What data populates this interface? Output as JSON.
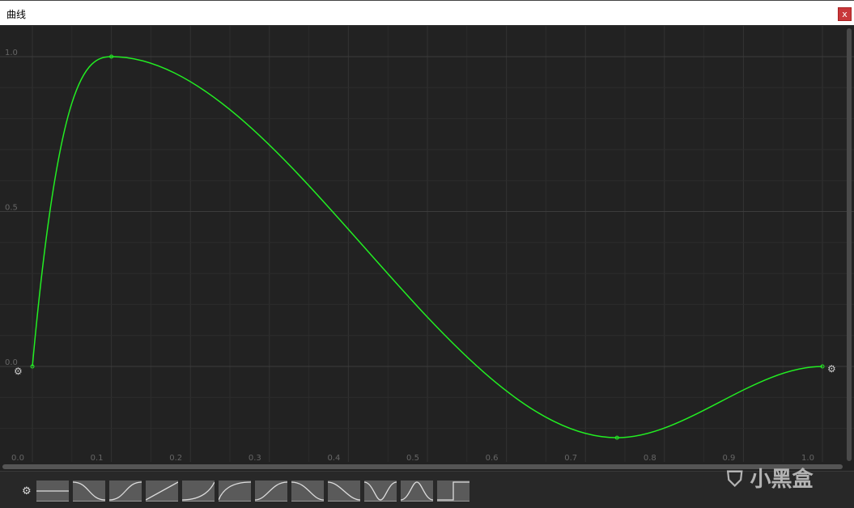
{
  "window": {
    "title": "曲线",
    "close_label": "x"
  },
  "chart_data": {
    "type": "line",
    "x_ticks": [
      "0.0",
      "0.1",
      "0.2",
      "0.3",
      "0.4",
      "0.5",
      "0.6",
      "0.7",
      "0.8",
      "0.9",
      "1.0"
    ],
    "y_ticks": [
      "0.0",
      "0.5",
      "1.0"
    ],
    "xlim": [
      0,
      1
    ],
    "ylim": [
      -0.23,
      1.0
    ],
    "grid": true,
    "curve_color": "#22ee22",
    "keys": [
      {
        "time": 0.0,
        "value": 0.0,
        "tangent": 28
      },
      {
        "time": 0.1,
        "value": 1.0,
        "tangent": 0
      },
      {
        "time": 0.74,
        "value": -0.23,
        "tangent": 0
      },
      {
        "time": 1.0,
        "value": 0.0,
        "tangent": 0
      }
    ]
  },
  "toolbar": {
    "presets": [
      "constant",
      "ease-in-out-down",
      "ease-in-out",
      "linear",
      "ease-in",
      "ease-out",
      "smooth-step",
      "smooth-down",
      "s-down",
      "valley",
      "hill",
      "step"
    ]
  },
  "watermark": "小黑盒"
}
